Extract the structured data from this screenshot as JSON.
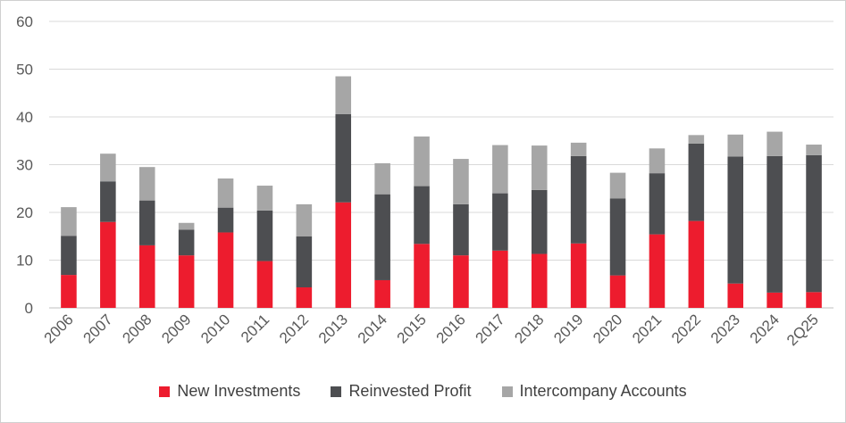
{
  "chart_data": {
    "type": "bar",
    "stacked": true,
    "categories": [
      "2006",
      "2007",
      "2008",
      "2009",
      "2010",
      "2011",
      "2012",
      "2013",
      "2014",
      "2015",
      "2016",
      "2017",
      "2018",
      "2019",
      "2020",
      "2021",
      "2022",
      "2023",
      "2024",
      "2Q25"
    ],
    "series": [
      {
        "name": "New Investments",
        "color": "#ed1c2e",
        "values": [
          6.9,
          18.0,
          13.1,
          11.0,
          15.8,
          9.8,
          4.3,
          22.1,
          5.8,
          13.4,
          11.0,
          12.0,
          11.3,
          13.5,
          6.8,
          15.4,
          18.2,
          5.1,
          3.2,
          3.3
        ]
      },
      {
        "name": "Reinvested Profit",
        "color": "#4d4e51",
        "values": [
          8.2,
          8.5,
          9.4,
          5.4,
          5.2,
          10.6,
          10.7,
          18.5,
          18.0,
          12.1,
          10.7,
          12.0,
          13.4,
          18.3,
          16.1,
          12.8,
          16.2,
          26.6,
          28.6,
          28.7
        ]
      },
      {
        "name": "Intercompany Accounts",
        "color": "#a6a6a6",
        "values": [
          6.0,
          5.8,
          7.0,
          1.4,
          6.1,
          5.2,
          6.7,
          7.9,
          6.5,
          10.4,
          9.5,
          10.1,
          9.3,
          2.8,
          5.4,
          5.2,
          1.8,
          4.6,
          5.1,
          2.2
        ]
      }
    ],
    "ylim": [
      0,
      60
    ],
    "yticks": [
      0,
      10,
      20,
      30,
      40,
      50,
      60
    ],
    "grid": true,
    "legend_position": "bottom"
  }
}
